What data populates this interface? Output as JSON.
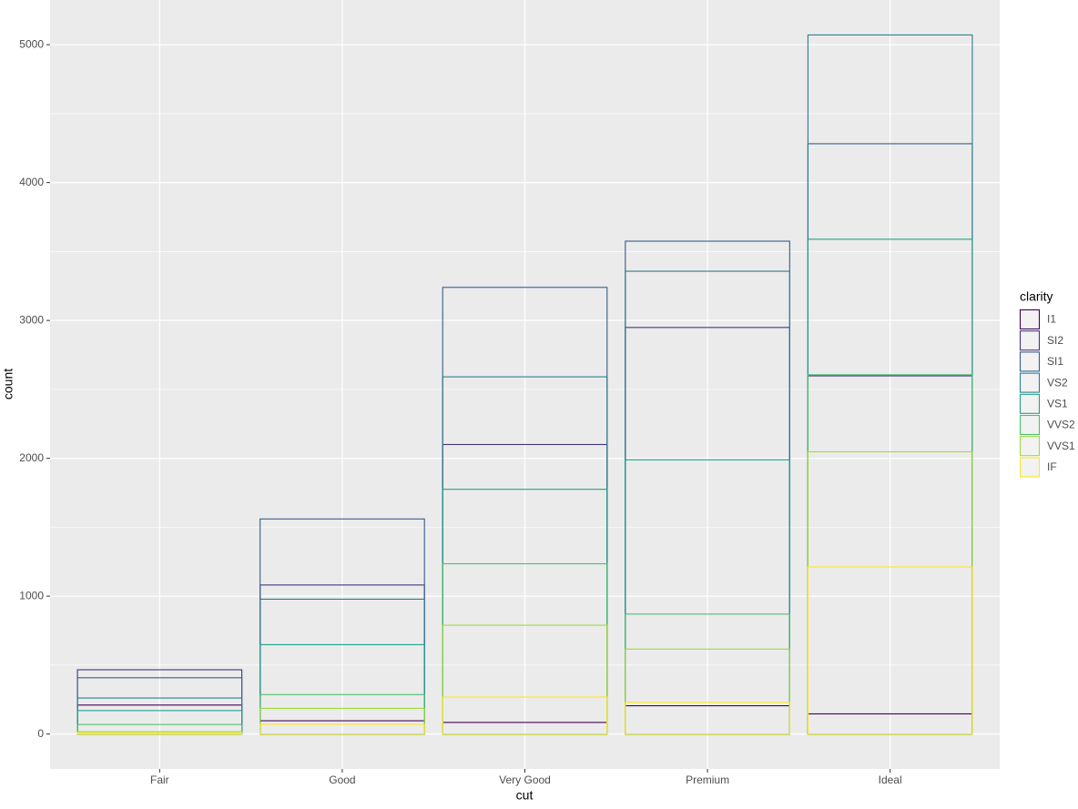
{
  "chart_data": {
    "type": "bar",
    "position": "identity",
    "x_label": "cut",
    "y_label": "count",
    "legend_title": "clarity",
    "legend_position": "right",
    "categories": [
      "Fair",
      "Good",
      "Very Good",
      "Premium",
      "Ideal"
    ],
    "series": [
      {
        "name": "I1",
        "color": "#440154",
        "values": [
          210,
          96,
          84,
          205,
          146
        ]
      },
      {
        "name": "SI2",
        "color": "#46337E",
        "values": [
          466,
          1081,
          2100,
          2949,
          2598
        ]
      },
      {
        "name": "SI1",
        "color": "#365C8D",
        "values": [
          408,
          1560,
          3240,
          3575,
          4282
        ]
      },
      {
        "name": "VS2",
        "color": "#277F8E",
        "values": [
          261,
          978,
          2591,
          3357,
          5071
        ]
      },
      {
        "name": "VS1",
        "color": "#1FA187",
        "values": [
          170,
          648,
          1775,
          1989,
          3589
        ]
      },
      {
        "name": "VVS2",
        "color": "#4AC16D",
        "values": [
          69,
          286,
          1235,
          870,
          2606
        ]
      },
      {
        "name": "VVS1",
        "color": "#9FDA3A",
        "values": [
          17,
          186,
          789,
          616,
          2047
        ]
      },
      {
        "name": "IF",
        "color": "#FDE725",
        "values": [
          9,
          71,
          268,
          230,
          1212
        ]
      }
    ],
    "ylim": [
      -253.55,
      5324.55
    ],
    "yticks": [
      0,
      1000,
      2000,
      3000,
      4000,
      5000
    ],
    "grid": true
  }
}
